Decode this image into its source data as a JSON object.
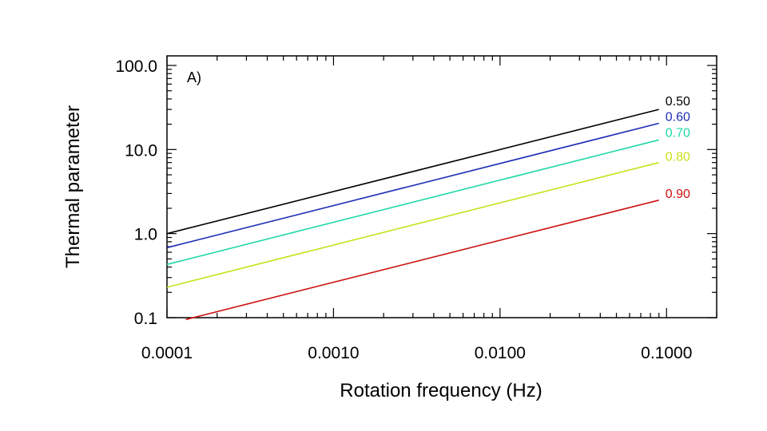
{
  "chart_data": {
    "type": "line",
    "title": "",
    "panel_label": "A)",
    "xlabel": "Rotation frequency (Hz)",
    "ylabel": "Thermal parameter",
    "xscale": "log",
    "yscale": "log",
    "xlim": [
      0.0001,
      0.2
    ],
    "ylim": [
      0.1,
      130
    ],
    "grid": false,
    "x_ticks": [
      0.0001,
      0.001,
      0.01,
      0.1
    ],
    "x_tick_labels": [
      "0.0001",
      "0.0010",
      "0.0100",
      "0.1000"
    ],
    "y_ticks": [
      0.1,
      1,
      10,
      100
    ],
    "y_tick_labels": [
      "0.1",
      "1.0",
      "10.0",
      "100.0"
    ],
    "series": [
      {
        "name": "0.50",
        "color": "#000000",
        "x": [
          0.0001,
          0.09
        ],
        "y": [
          1.0,
          30.0
        ]
      },
      {
        "name": "0.60",
        "color": "#1f2fb8",
        "x": [
          0.0001,
          0.09
        ],
        "y": [
          0.68,
          20.5
        ]
      },
      {
        "name": "0.70",
        "color": "#1fd8a8",
        "x": [
          0.0001,
          0.09
        ],
        "y": [
          0.43,
          13.0
        ]
      },
      {
        "name": "0.80",
        "color": "#c8e01a",
        "x": [
          0.0001,
          0.09
        ],
        "y": [
          0.23,
          7.0
        ]
      },
      {
        "name": "0.90",
        "color": "#cc1111",
        "x": [
          0.00013,
          0.09
        ],
        "y": [
          0.095,
          2.5
        ]
      }
    ]
  }
}
